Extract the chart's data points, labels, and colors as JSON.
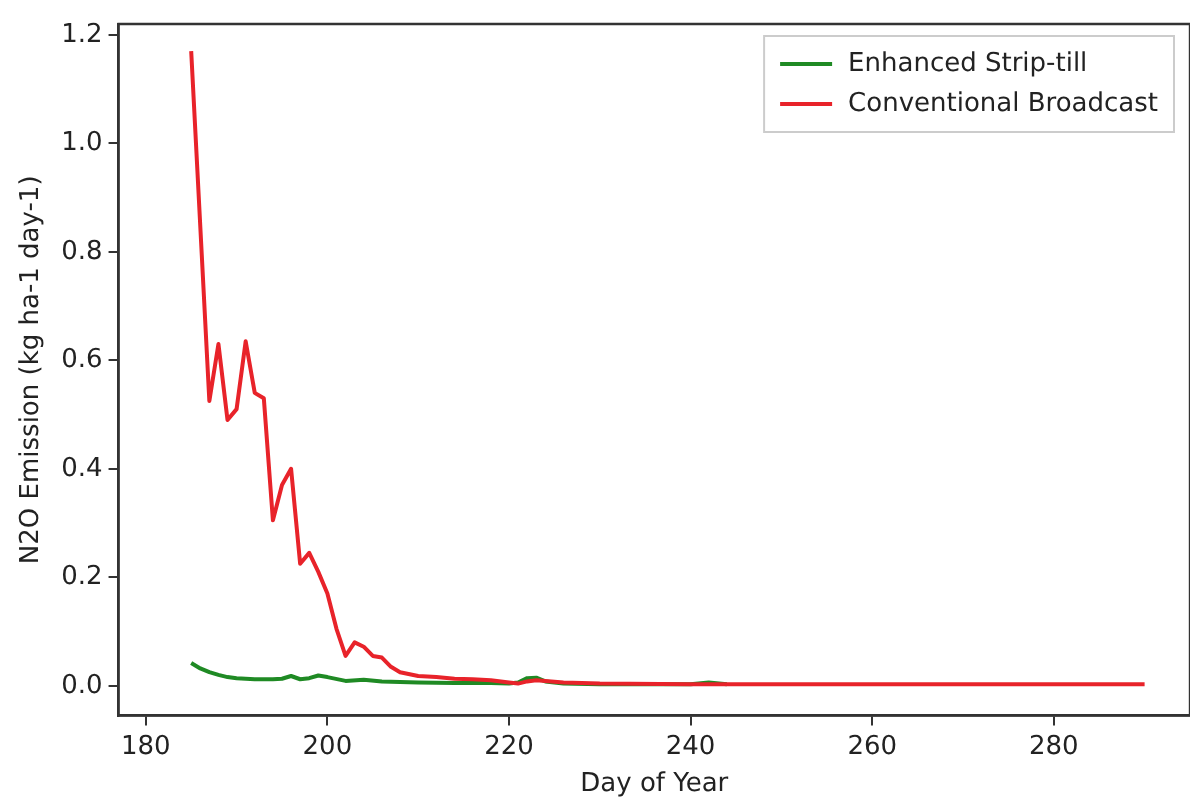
{
  "chart_data": {
    "type": "line",
    "xlabel": "Day of Year",
    "ylabel": "N2O Emission (kg ha-1 day-1)",
    "xlim": [
      177,
      295
    ],
    "ylim": [
      -0.055,
      1.22
    ],
    "xticks": [
      180,
      200,
      220,
      240,
      260,
      280
    ],
    "yticks": [
      {
        "value": 0,
        "label": "0.0"
      },
      0.2,
      0.4,
      0.6,
      0.8,
      {
        "value": 1,
        "label": "1.0"
      },
      1.2
    ],
    "legend": "top right",
    "grid": false,
    "marker": "none",
    "line_style": "solid",
    "series": [
      {
        "name": "Enhanced Strip-till",
        "color": "#1f8a24",
        "x": [
          185,
          186,
          187,
          188,
          189,
          190,
          192,
          194,
          195,
          196,
          197,
          198,
          199,
          200,
          202,
          204,
          206,
          208,
          210,
          214,
          218,
          220,
          221,
          222,
          223,
          224,
          226,
          230,
          240,
          242,
          244
        ],
        "values": [
          0.042,
          0.032,
          0.025,
          0.02,
          0.016,
          0.014,
          0.012,
          0.012,
          0.013,
          0.018,
          0.012,
          0.014,
          0.019,
          0.016,
          0.009,
          0.011,
          0.008,
          0.007,
          0.006,
          0.005,
          0.005,
          0.004,
          0.006,
          0.014,
          0.015,
          0.008,
          0.004,
          0.003,
          0.003,
          0.006,
          0.003
        ]
      },
      {
        "name": "Conventional Broadcast",
        "color": "#e8232a",
        "x": [
          185,
          187,
          188,
          189,
          190,
          191,
          192,
          193,
          194,
          195,
          196,
          197,
          198,
          199,
          200,
          201,
          202,
          203,
          204,
          205,
          206,
          207,
          208,
          210,
          212,
          214,
          216,
          218,
          220,
          221,
          222,
          223,
          226,
          230,
          240,
          250,
          260,
          270,
          280,
          290
        ],
        "values": [
          1.17,
          0.525,
          0.63,
          0.49,
          0.51,
          0.635,
          0.54,
          0.53,
          0.305,
          0.37,
          0.4,
          0.225,
          0.245,
          0.21,
          0.17,
          0.105,
          0.055,
          0.08,
          0.072,
          0.055,
          0.052,
          0.035,
          0.025,
          0.018,
          0.016,
          0.013,
          0.012,
          0.01,
          0.006,
          0.004,
          0.008,
          0.01,
          0.006,
          0.004,
          0.003,
          0.003,
          0.003,
          0.003,
          0.003,
          0.003
        ]
      }
    ]
  }
}
